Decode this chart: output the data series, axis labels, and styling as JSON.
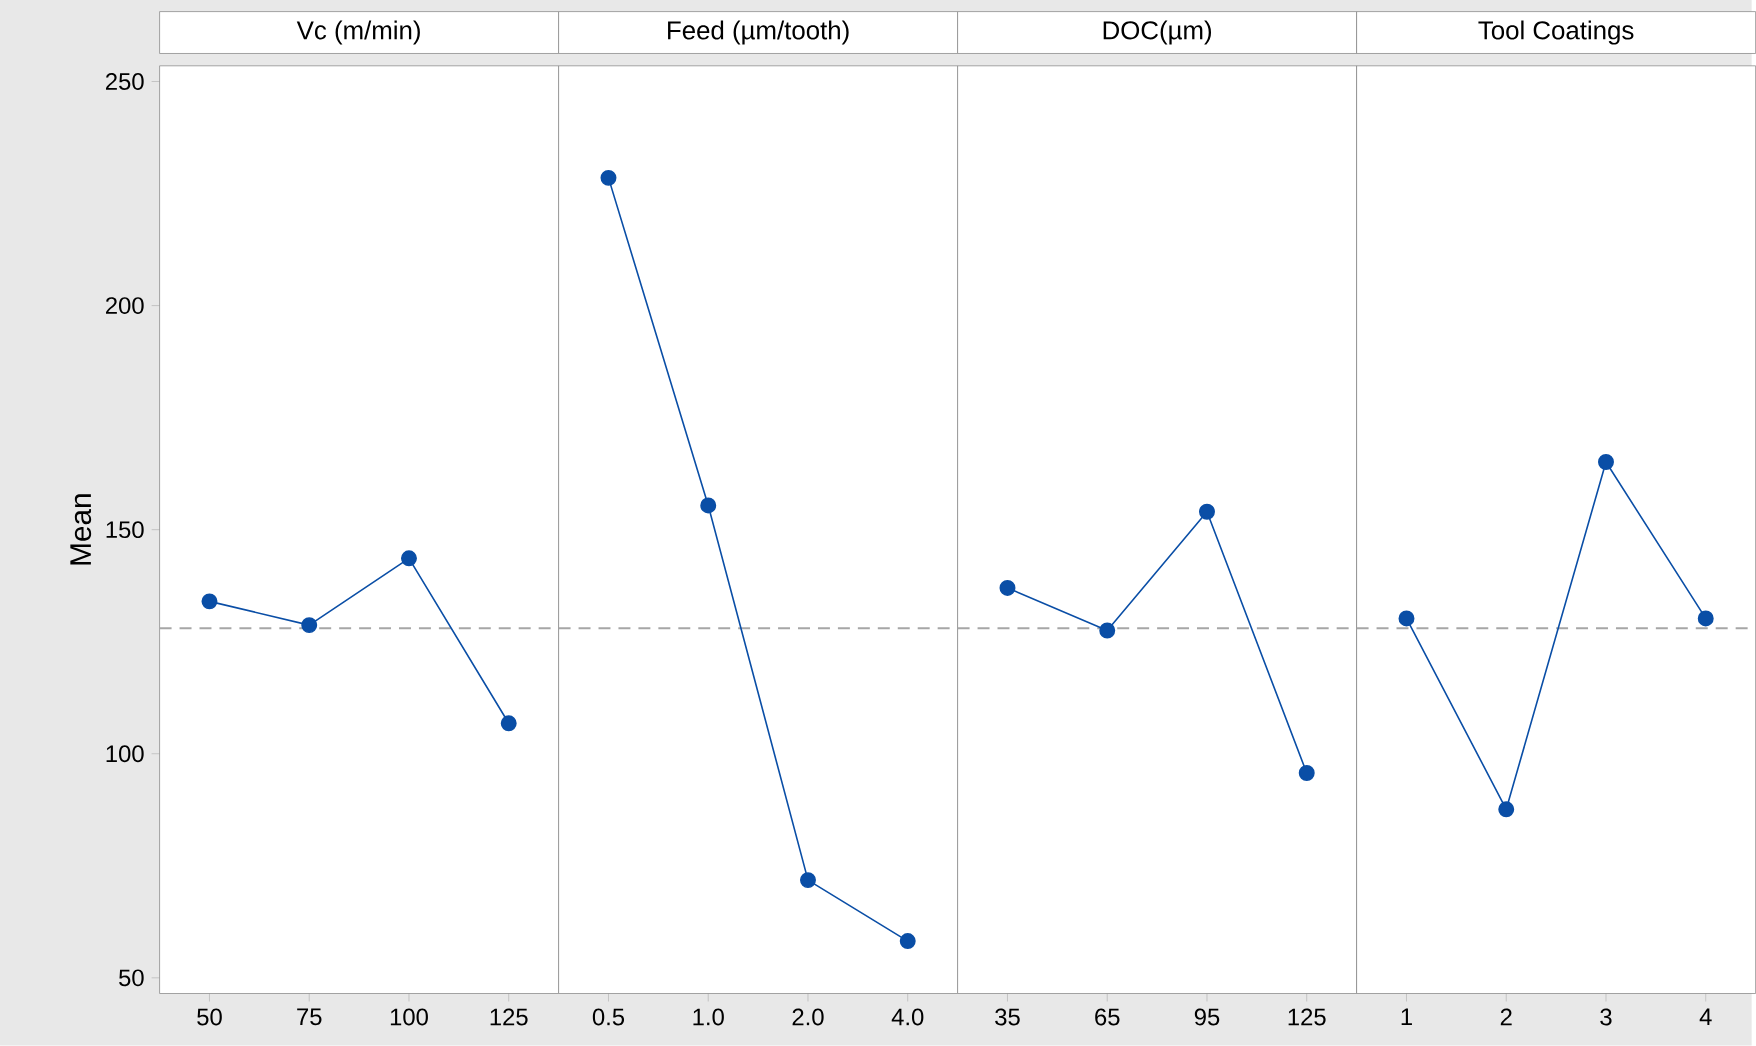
{
  "chart_data": [
    {
      "type": "line",
      "title": "Vc (m/min)",
      "ylabel": "Mean",
      "categories": [
        "50",
        "75",
        "100",
        "125"
      ],
      "values": [
        134,
        128.7,
        143.6,
        106.8
      ],
      "color": "#0a4ea6",
      "marker": "circle",
      "ylim": [
        46.5,
        253.5
      ],
      "yticks": [
        50,
        100,
        150,
        200,
        250
      ],
      "ref_lines": [
        {
          "axis": "y",
          "value": 128,
          "color": "#a6a6a6",
          "line_style": "dashed"
        }
      ]
    },
    {
      "type": "line",
      "title": "Feed (µm/tooth)",
      "categories": [
        "0.5",
        "1.0",
        "2.0",
        "4.0"
      ],
      "values": [
        228.5,
        155.4,
        71.8,
        58.2
      ],
      "color": "#0a4ea6",
      "marker": "circle",
      "ylim": [
        46.5,
        253.5
      ],
      "tick_labels": "x",
      "ref_lines": [
        {
          "axis": "y",
          "value": 128,
          "color": "#a6a6a6",
          "line_style": "dashed"
        }
      ]
    },
    {
      "type": "line",
      "title": "DOC(µm)",
      "categories": [
        "35",
        "65",
        "95",
        "125"
      ],
      "values": [
        137,
        127.5,
        154,
        95.7
      ],
      "color": "#0a4ea6",
      "marker": "circle",
      "ylim": [
        46.5,
        253.5
      ],
      "tick_labels": "x",
      "ref_lines": [
        {
          "axis": "y",
          "value": 128,
          "color": "#a6a6a6",
          "line_style": "dashed"
        }
      ]
    },
    {
      "type": "line",
      "title": "Tool Coatings",
      "categories": [
        "1",
        "2",
        "3",
        "4"
      ],
      "values": [
        130.2,
        87.6,
        165.1,
        130.2
      ],
      "color": "#0a4ea6",
      "marker": "circle",
      "ylim": [
        46.5,
        253.5
      ],
      "tick_labels": "x",
      "ref_lines": [
        {
          "axis": "y",
          "value": 128,
          "color": "#a6a6a6",
          "line_style": "dashed"
        }
      ]
    }
  ]
}
